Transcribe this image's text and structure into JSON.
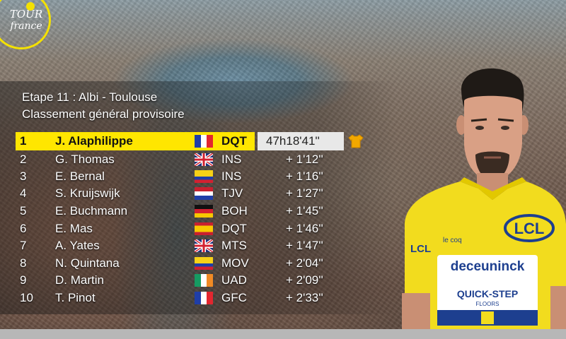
{
  "logo": {
    "line1": "TOUR",
    "line2": "france"
  },
  "stage": {
    "title": "Etape 11 : Albi - Toulouse",
    "subtitle": "Classement général provisoire"
  },
  "leader_time": "47h18'41''",
  "standings": [
    {
      "pos": "1",
      "name": "J. Alaphilippe",
      "team": "DQT",
      "gap": "47h18'41''",
      "flag": "france"
    },
    {
      "pos": "2",
      "name": "G. Thomas",
      "team": "INS",
      "gap": "+ 1'12''",
      "flag": "united-kingdom"
    },
    {
      "pos": "3",
      "name": "E. Bernal",
      "team": "INS",
      "gap": "+ 1'16''",
      "flag": "colombia"
    },
    {
      "pos": "4",
      "name": "S. Kruijswijk",
      "team": "TJV",
      "gap": "+ 1'27''",
      "flag": "netherlands"
    },
    {
      "pos": "5",
      "name": "E. Buchmann",
      "team": "BOH",
      "gap": "+ 1'45''",
      "flag": "germany"
    },
    {
      "pos": "6",
      "name": "E. Mas",
      "team": "DQT",
      "gap": "+ 1'46''",
      "flag": "spain"
    },
    {
      "pos": "7",
      "name": "A. Yates",
      "team": "MTS",
      "gap": "+ 1'47''",
      "flag": "united-kingdom"
    },
    {
      "pos": "8",
      "name": "N. Quintana",
      "team": "MOV",
      "gap": "+ 2'04''",
      "flag": "colombia"
    },
    {
      "pos": "9",
      "name": "D. Martin",
      "team": "UAD",
      "gap": "+ 2'09''",
      "flag": "ireland"
    },
    {
      "pos": "10",
      "name": "T. Pinot",
      "team": "GFC",
      "gap": "+ 2'33''",
      "flag": "france"
    }
  ],
  "jersey": {
    "brand_left": "LCL",
    "sponsor": "deceuninck",
    "sponsor2": "QUICK-STEP",
    "sponsor2_sub": "FLOORS",
    "side_logo": "LCL",
    "supplier": "le coq sportif"
  },
  "colors": {
    "yellow": "#ffe600",
    "jersey_yellow": "#f2dc1e",
    "navy": "#1d3f8f"
  }
}
